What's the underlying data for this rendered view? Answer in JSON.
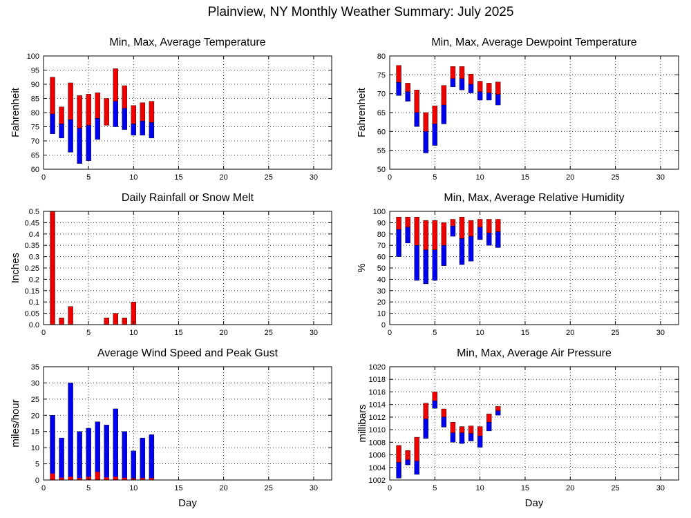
{
  "title": "Plainview, NY Monthly Weather Summary: July 2025",
  "colors": {
    "max": "#ee0000",
    "min": "#0000ee",
    "grid": "#000000"
  },
  "chart_data": [
    {
      "type": "bar",
      "title": "Min, Max, Average Temperature",
      "ylabel": "Fahrenheit",
      "xlabel": "",
      "xlim": [
        0,
        32
      ],
      "ylim": [
        60,
        100
      ],
      "xticks": [
        0,
        5,
        10,
        15,
        20,
        25,
        30
      ],
      "yticks": [
        60,
        65,
        70,
        75,
        80,
        85,
        90,
        95,
        100
      ],
      "grid": true,
      "style": "range",
      "days": [
        1,
        2,
        3,
        4,
        5,
        6,
        7,
        8,
        9,
        10,
        11,
        12
      ],
      "series": [
        {
          "values": [
            92.5,
            82,
            90.5,
            86,
            86.5,
            87,
            85,
            95.5,
            89.5,
            82.5,
            83.5,
            84
          ]
        },
        {
          "values": [
            79.5,
            76,
            77.5,
            74.5,
            75.5,
            78,
            75.5,
            84,
            81.5,
            76,
            77,
            76.5
          ]
        },
        {
          "values": [
            72.5,
            71,
            66,
            62,
            63,
            70.5,
            75.5,
            75,
            74,
            72,
            72,
            71
          ]
        }
      ]
    },
    {
      "type": "bar",
      "title": "Min, Max, Average Dewpoint Temperature",
      "ylabel": "Fahrenheit",
      "xlabel": "",
      "xlim": [
        0,
        32
      ],
      "ylim": [
        50,
        80
      ],
      "xticks": [
        0,
        5,
        10,
        15,
        20,
        25,
        30
      ],
      "yticks": [
        50,
        55,
        60,
        65,
        70,
        75,
        80
      ],
      "grid": true,
      "style": "range",
      "days": [
        1,
        2,
        3,
        4,
        5,
        6,
        7,
        8,
        9,
        10,
        11,
        12
      ],
      "series": [
        {
          "values": [
            77.5,
            72.8,
            71,
            65,
            66.8,
            72.2,
            77.2,
            77.2,
            75.2,
            73.3,
            72.8,
            73.1
          ]
        },
        {
          "values": [
            73,
            70.5,
            65,
            60,
            62,
            67,
            74,
            74,
            72.5,
            70.5,
            70.2,
            69.8
          ]
        },
        {
          "values": [
            69.5,
            68,
            61.3,
            54.3,
            56.3,
            62,
            71.8,
            71,
            70.2,
            68.3,
            68.3,
            67
          ]
        }
      ]
    },
    {
      "type": "bar",
      "title": "Daily Rainfall or Snow Melt",
      "ylabel": "Inches",
      "xlabel": "",
      "xlim": [
        0,
        32
      ],
      "ylim": [
        0,
        0.5
      ],
      "xticks": [
        0,
        5,
        10,
        15,
        20,
        25,
        30
      ],
      "yticks": [
        0,
        0.05,
        0.1,
        0.15,
        0.2,
        0.25,
        0.3,
        0.35,
        0.4,
        0.45,
        0.5
      ],
      "ytick_labels": [
        "0.0",
        "0.05",
        "0.1",
        "0.15",
        "0.2",
        "0.25",
        "0.3",
        "0.35",
        "0.4",
        "0.45",
        "0.5"
      ],
      "grid": true,
      "style": "single",
      "days": [
        1,
        2,
        3,
        4,
        5,
        6,
        7,
        8,
        9,
        10,
        11,
        12
      ],
      "series": [
        {
          "values": [
            0.5,
            0.03,
            0.08,
            0,
            0,
            0,
            0.03,
            0.05,
            0.03,
            0.1,
            0,
            0
          ]
        }
      ]
    },
    {
      "type": "bar",
      "title": "Min, Max, Average Relative Humidity",
      "ylabel": "%",
      "xlabel": "",
      "xlim": [
        0,
        32
      ],
      "ylim": [
        0,
        100
      ],
      "xticks": [
        0,
        5,
        10,
        15,
        20,
        25,
        30
      ],
      "yticks": [
        0,
        10,
        20,
        30,
        40,
        50,
        60,
        70,
        80,
        90,
        100
      ],
      "grid": true,
      "style": "range",
      "days": [
        1,
        2,
        3,
        4,
        5,
        6,
        7,
        8,
        9,
        10,
        11,
        12
      ],
      "series": [
        {
          "values": [
            95,
            95,
            95,
            92,
            92,
            90,
            93,
            95,
            92,
            93,
            93,
            93
          ]
        },
        {
          "values": [
            84,
            86,
            70,
            66,
            66,
            70,
            87,
            76,
            78,
            86,
            81,
            82
          ]
        },
        {
          "values": [
            60,
            72,
            39,
            36,
            39,
            52,
            78,
            53,
            56,
            75,
            70,
            68
          ]
        }
      ]
    },
    {
      "type": "bar",
      "title": "Average Wind Speed and Peak Gust",
      "ylabel": "miles/hour",
      "xlabel": "Day",
      "xlim": [
        0,
        32
      ],
      "ylim": [
        0,
        35
      ],
      "xticks": [
        0,
        5,
        10,
        15,
        20,
        25,
        30
      ],
      "yticks": [
        0,
        5,
        10,
        15,
        20,
        25,
        30,
        35
      ],
      "grid": true,
      "style": "wind",
      "days": [
        1,
        2,
        3,
        4,
        5,
        6,
        7,
        8,
        9,
        10,
        11,
        12
      ],
      "series": [
        {
          "values": [
            20,
            13,
            30,
            15,
            16,
            18,
            17,
            22,
            15,
            9,
            13,
            14
          ]
        },
        {
          "values": [
            2,
            0.7,
            1,
            0.6,
            1,
            2.5,
            0.8,
            1,
            0.7,
            0.5,
            0.6,
            0.6
          ]
        }
      ]
    },
    {
      "type": "bar",
      "title": "Min, Max, Average Air Pressure",
      "ylabel": "millibars",
      "xlabel": "Day",
      "xlim": [
        0,
        32
      ],
      "ylim": [
        1002,
        1020
      ],
      "xticks": [
        0,
        5,
        10,
        15,
        20,
        25,
        30
      ],
      "yticks": [
        1002,
        1004,
        1006,
        1008,
        1010,
        1012,
        1014,
        1016,
        1018,
        1020
      ],
      "grid": true,
      "style": "range",
      "days": [
        1,
        2,
        3,
        4,
        5,
        6,
        7,
        8,
        9,
        10,
        11,
        12
      ],
      "series": [
        {
          "values": [
            1007.5,
            1006.7,
            1008.8,
            1014.2,
            1016,
            1013.3,
            1011.2,
            1010.5,
            1010.6,
            1010.5,
            1012.5,
            1013.7
          ]
        },
        {
          "values": [
            1004.8,
            1005.2,
            1005,
            1011.7,
            1014.6,
            1012,
            1009.5,
            1009.5,
            1009.4,
            1009,
            1011.2,
            1013
          ]
        },
        {
          "values": [
            1002.3,
            1004.4,
            1002.9,
            1008.6,
            1013.4,
            1010.4,
            1008,
            1007.8,
            1008.2,
            1007.2,
            1009.8,
            1012.3
          ]
        }
      ]
    }
  ]
}
